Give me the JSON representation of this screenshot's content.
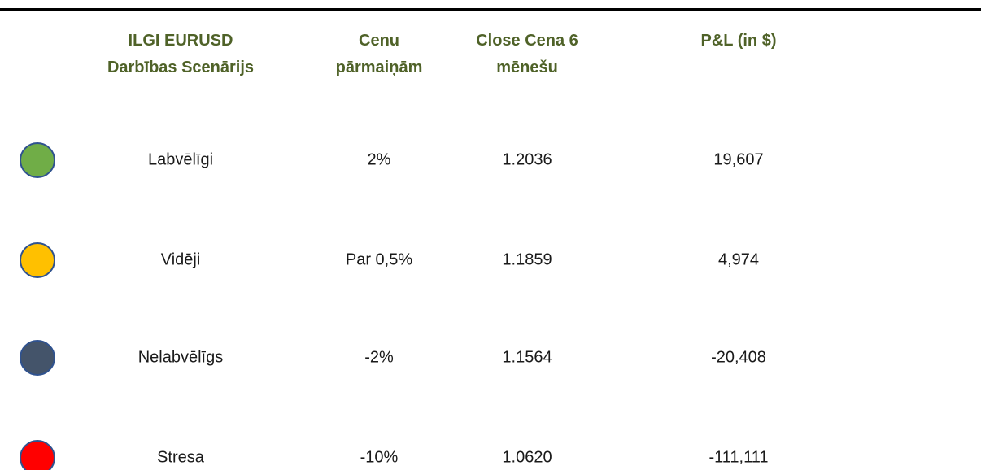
{
  "table": {
    "headers": [
      [
        "ILGI EURUSD",
        "Darbības Scenārijs"
      ],
      [
        "Cenu",
        "pārmaiņām"
      ],
      [
        "Close Cena 6",
        "mēnešu"
      ],
      [
        "P&L (in $)"
      ]
    ],
    "rows": [
      {
        "color": "#70ad47",
        "cells": [
          "Labvēlīgi",
          "2%",
          "1.2036",
          "19,607"
        ]
      },
      {
        "color": "#ffc000",
        "cells": [
          "Vidēji",
          "Par 0,5%",
          "1.1859",
          "4,974"
        ]
      },
      {
        "color": "#44546a",
        "cells": [
          "Nelabvēlīgs",
          "-2%",
          "1.1564",
          "-20,408"
        ]
      },
      {
        "color": "#ff0000",
        "cells": [
          "Stresa",
          "-10%",
          "1.0620",
          "-111,111"
        ]
      }
    ]
  }
}
